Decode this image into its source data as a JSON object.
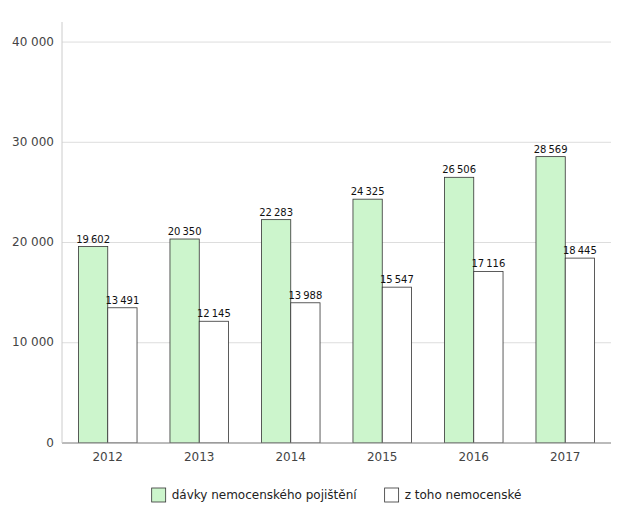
{
  "chart_data": {
    "type": "bar",
    "categories": [
      "2012",
      "2013",
      "2014",
      "2015",
      "2016",
      "2017"
    ],
    "series": [
      {
        "name": "dávky nemocenského pojištění",
        "color": "#ccf5cc",
        "values": [
          19602,
          20350,
          22283,
          24325,
          26506,
          28569
        ],
        "value_labels": [
          "19 602",
          "20 350",
          "22 283",
          "24 325",
          "26 506",
          "28 569"
        ]
      },
      {
        "name": "z toho nemocenské",
        "color": "#ffffff",
        "values": [
          13491,
          12145,
          13988,
          15547,
          17116,
          18445
        ],
        "value_labels": [
          "13 491",
          "12 145",
          "13 988",
          "15 547",
          "17 116",
          "18 445"
        ]
      }
    ],
    "ylim": [
      0,
      42000
    ],
    "yticks": [
      0,
      {
        "value": 10000,
        "label": "10 000"
      },
      {
        "value": 20000,
        "label": "20 000"
      },
      {
        "value": 30000,
        "label": "30 000"
      },
      {
        "value": 40000,
        "label": "40 000"
      }
    ],
    "grid": true,
    "legend": "bottom",
    "data_labels": true
  }
}
